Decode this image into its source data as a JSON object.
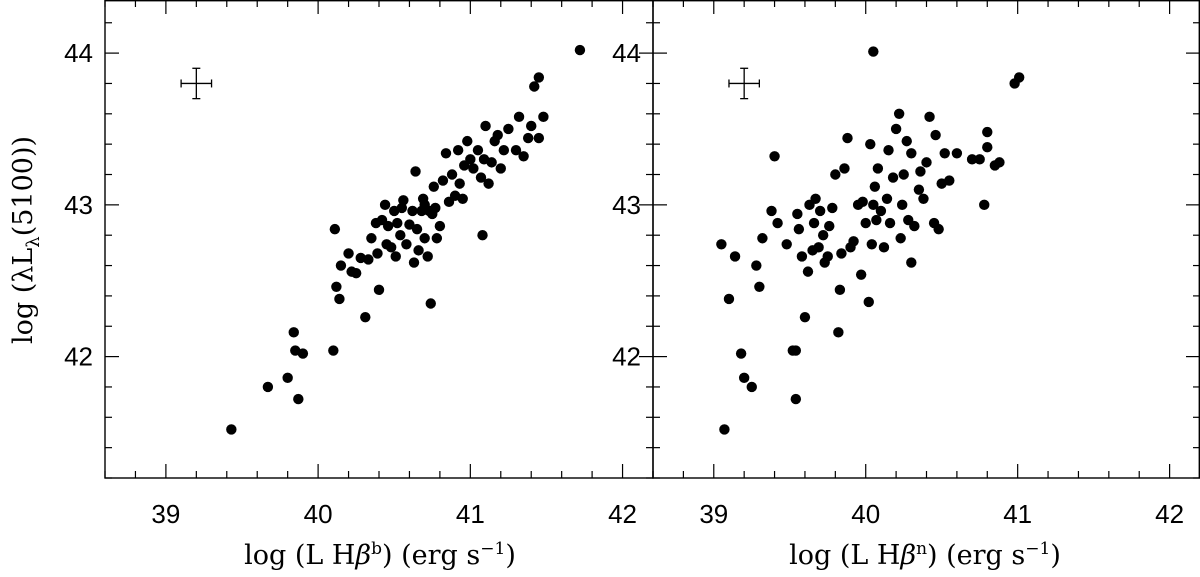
{
  "chart_data": [
    {
      "type": "scatter",
      "xlabel": "log (L Hβ^b) (erg s^-1)",
      "xlabel_parts": {
        "pre": "log (L H",
        "beta": "β",
        "sup": "b",
        "post": ") (erg s",
        "unit_sup": "−1",
        "close": ")"
      },
      "ylabel": "log (λL_λ(5100))",
      "ylabel_parts": {
        "pre": "log (λL",
        "sub": "λ",
        "post": "(5100))"
      },
      "xlim": [
        38.6,
        42.2
      ],
      "ylim": [
        41.2,
        44.35
      ],
      "xticks": [
        39,
        40,
        41,
        42
      ],
      "yticks": [
        42,
        43,
        44
      ],
      "error_bar": {
        "x": 39.2,
        "y": 43.8,
        "dx": 0.1,
        "dy": 0.1
      },
      "points": [
        [
          39.43,
          41.52
        ],
        [
          39.67,
          41.8
        ],
        [
          39.8,
          41.86
        ],
        [
          39.84,
          42.16
        ],
        [
          39.85,
          42.04
        ],
        [
          39.87,
          41.72
        ],
        [
          39.9,
          42.02
        ],
        [
          40.1,
          42.04
        ],
        [
          40.11,
          42.84
        ],
        [
          40.12,
          42.46
        ],
        [
          40.14,
          42.38
        ],
        [
          40.15,
          42.6
        ],
        [
          40.2,
          42.68
        ],
        [
          40.22,
          42.56
        ],
        [
          40.25,
          42.55
        ],
        [
          40.28,
          42.65
        ],
        [
          40.31,
          42.26
        ],
        [
          40.33,
          42.64
        ],
        [
          40.35,
          42.78
        ],
        [
          40.38,
          42.88
        ],
        [
          40.39,
          42.68
        ],
        [
          40.4,
          42.44
        ],
        [
          40.42,
          42.9
        ],
        [
          40.44,
          43.0
        ],
        [
          40.45,
          42.74
        ],
        [
          40.46,
          42.86
        ],
        [
          40.48,
          42.72
        ],
        [
          40.5,
          42.96
        ],
        [
          40.51,
          42.66
        ],
        [
          40.52,
          42.88
        ],
        [
          40.54,
          42.8
        ],
        [
          40.55,
          42.98
        ],
        [
          40.56,
          43.03
        ],
        [
          40.58,
          42.74
        ],
        [
          40.6,
          42.87
        ],
        [
          40.62,
          42.96
        ],
        [
          40.63,
          42.62
        ],
        [
          40.64,
          43.22
        ],
        [
          40.65,
          42.84
        ],
        [
          40.66,
          42.7
        ],
        [
          40.68,
          42.96
        ],
        [
          40.69,
          43.04
        ],
        [
          40.7,
          42.78
        ],
        [
          40.7,
          43.0
        ],
        [
          40.72,
          42.66
        ],
        [
          40.73,
          42.96
        ],
        [
          40.74,
          42.35
        ],
        [
          40.75,
          42.94
        ],
        [
          40.76,
          43.12
        ],
        [
          40.77,
          42.98
        ],
        [
          40.78,
          42.78
        ],
        [
          40.8,
          42.86
        ],
        [
          40.82,
          43.16
        ],
        [
          40.84,
          43.34
        ],
        [
          40.86,
          43.02
        ],
        [
          40.88,
          43.2
        ],
        [
          40.9,
          43.06
        ],
        [
          40.92,
          43.36
        ],
        [
          40.93,
          43.14
        ],
        [
          40.95,
          43.04
        ],
        [
          40.96,
          43.26
        ],
        [
          40.98,
          43.42
        ],
        [
          41.0,
          43.3
        ],
        [
          41.02,
          43.24
        ],
        [
          41.05,
          43.36
        ],
        [
          41.07,
          43.18
        ],
        [
          41.08,
          42.8
        ],
        [
          41.09,
          43.3
        ],
        [
          41.1,
          43.52
        ],
        [
          41.12,
          43.14
        ],
        [
          41.14,
          43.28
        ],
        [
          41.16,
          43.42
        ],
        [
          41.18,
          43.46
        ],
        [
          41.2,
          43.24
        ],
        [
          41.22,
          43.36
        ],
        [
          41.25,
          43.5
        ],
        [
          41.3,
          43.36
        ],
        [
          41.32,
          43.58
        ],
        [
          41.35,
          43.32
        ],
        [
          41.38,
          43.44
        ],
        [
          41.4,
          43.52
        ],
        [
          41.42,
          43.78
        ],
        [
          41.45,
          43.84
        ],
        [
          41.48,
          43.58
        ],
        [
          41.45,
          43.44
        ],
        [
          41.72,
          44.02
        ]
      ]
    },
    {
      "type": "scatter",
      "xlabel": "log (L Hβ^n) (erg s^-1)",
      "xlabel_parts": {
        "pre": "log (L H",
        "beta": "β",
        "sup": "n",
        "post": ") (erg s",
        "unit_sup": "−1",
        "close": ")"
      },
      "xlim": [
        38.6,
        42.2
      ],
      "ylim": [
        41.2,
        44.35
      ],
      "xticks": [
        39,
        40,
        41,
        42
      ],
      "yticks": [
        42,
        43,
        44
      ],
      "error_bar": {
        "x": 39.2,
        "y": 43.8,
        "dx": 0.1,
        "dy": 0.1
      },
      "points": [
        [
          39.05,
          42.74
        ],
        [
          39.07,
          41.52
        ],
        [
          39.1,
          42.38
        ],
        [
          39.14,
          42.66
        ],
        [
          39.18,
          42.02
        ],
        [
          39.2,
          41.86
        ],
        [
          39.25,
          41.8
        ],
        [
          39.28,
          42.6
        ],
        [
          39.3,
          42.46
        ],
        [
          39.32,
          42.78
        ],
        [
          39.38,
          42.96
        ],
        [
          39.4,
          43.32
        ],
        [
          39.42,
          42.88
        ],
        [
          39.48,
          42.74
        ],
        [
          39.52,
          42.04
        ],
        [
          39.54,
          42.04
        ],
        [
          39.54,
          41.72
        ],
        [
          39.55,
          42.94
        ],
        [
          39.56,
          42.84
        ],
        [
          39.58,
          42.66
        ],
        [
          39.6,
          42.26
        ],
        [
          39.62,
          42.56
        ],
        [
          39.63,
          43.0
        ],
        [
          39.65,
          42.7
        ],
        [
          39.66,
          42.88
        ],
        [
          39.67,
          43.04
        ],
        [
          39.69,
          42.72
        ],
        [
          39.7,
          42.96
        ],
        [
          39.72,
          42.8
        ],
        [
          39.73,
          42.62
        ],
        [
          39.75,
          42.66
        ],
        [
          39.76,
          42.86
        ],
        [
          39.78,
          42.98
        ],
        [
          39.8,
          43.2
        ],
        [
          39.82,
          42.16
        ],
        [
          39.83,
          42.44
        ],
        [
          39.84,
          42.68
        ],
        [
          39.86,
          43.24
        ],
        [
          39.88,
          43.44
        ],
        [
          39.9,
          42.72
        ],
        [
          39.92,
          42.76
        ],
        [
          39.95,
          43.0
        ],
        [
          39.97,
          42.54
        ],
        [
          39.98,
          43.02
        ],
        [
          40.0,
          42.88
        ],
        [
          40.02,
          42.36
        ],
        [
          40.03,
          43.4
        ],
        [
          40.04,
          42.74
        ],
        [
          40.05,
          43.0
        ],
        [
          40.05,
          44.01
        ],
        [
          40.06,
          43.12
        ],
        [
          40.07,
          42.9
        ],
        [
          40.08,
          43.24
        ],
        [
          40.1,
          42.96
        ],
        [
          40.12,
          42.72
        ],
        [
          40.14,
          43.04
        ],
        [
          40.15,
          43.36
        ],
        [
          40.16,
          42.88
        ],
        [
          40.18,
          43.18
        ],
        [
          40.2,
          43.5
        ],
        [
          40.22,
          43.6
        ],
        [
          40.23,
          42.78
        ],
        [
          40.24,
          43.0
        ],
        [
          40.25,
          43.2
        ],
        [
          40.27,
          43.42
        ],
        [
          40.28,
          42.9
        ],
        [
          40.3,
          43.34
        ],
        [
          40.3,
          42.62
        ],
        [
          40.32,
          42.86
        ],
        [
          40.35,
          43.1
        ],
        [
          40.36,
          43.22
        ],
        [
          40.38,
          43.04
        ],
        [
          40.4,
          43.28
        ],
        [
          40.42,
          43.58
        ],
        [
          40.45,
          42.88
        ],
        [
          40.46,
          43.46
        ],
        [
          40.48,
          42.84
        ],
        [
          40.5,
          43.14
        ],
        [
          40.52,
          43.34
        ],
        [
          40.55,
          43.16
        ],
        [
          40.6,
          43.34
        ],
        [
          40.7,
          43.3
        ],
        [
          40.75,
          43.3
        ],
        [
          40.78,
          43.0
        ],
        [
          40.8,
          43.48
        ],
        [
          40.8,
          43.38
        ],
        [
          40.85,
          43.26
        ],
        [
          40.88,
          43.28
        ],
        [
          40.98,
          43.8
        ],
        [
          41.01,
          43.84
        ]
      ]
    }
  ]
}
